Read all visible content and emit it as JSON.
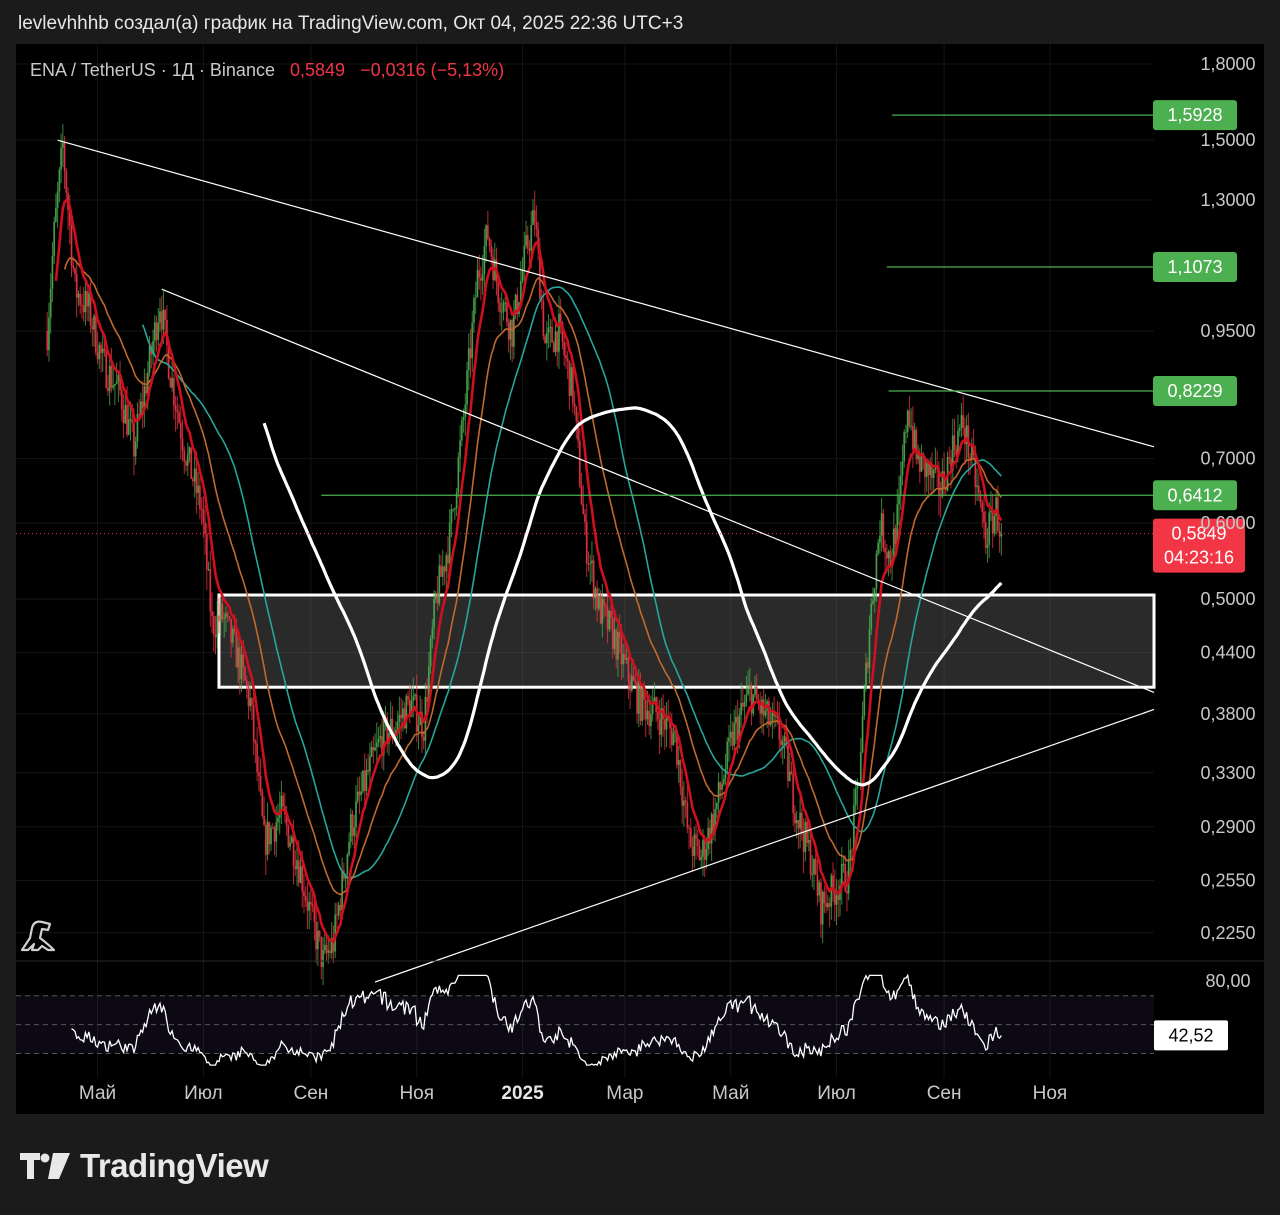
{
  "header": {
    "attribution": "levlevhhhb создал(а) график на TradingView.com, Окт 04, 2025 22:36 UTC+3"
  },
  "symbol": {
    "pair": "ENA / TetherUS · 1Д · Binance",
    "last_price": "0,5849",
    "change": "−0,0316 (−5,13%)"
  },
  "colors": {
    "up": "#4caf50",
    "down": "#f23645",
    "ema_fast": "#d0101e",
    "ema_slow": "#c0692c",
    "sma": "#26a69a",
    "trend_lines": "#ffffff",
    "target_lines": "#4caf50"
  },
  "chart_data": {
    "type": "candlestick",
    "price_axis": {
      "scale": "log",
      "ticks": [
        "1,8000",
        "1,5000",
        "1,3000",
        "0,9500",
        "0,7000",
        "0,6000",
        "0,5000",
        "0,4400",
        "0,3800",
        "0,3300",
        "0,2900",
        "0,2550",
        "0,2250"
      ],
      "tick_values": [
        1.8,
        1.5,
        1.3,
        0.95,
        0.7,
        0.6,
        0.5,
        0.44,
        0.38,
        0.33,
        0.29,
        0.255,
        0.225
      ],
      "range": [
        0.2,
        1.8
      ]
    },
    "time_axis": {
      "ticks": [
        "Май",
        "Июл",
        "Сен",
        "Ноя",
        "2025",
        "Мар",
        "Май",
        "Июл",
        "Сен",
        "Ноя"
      ],
      "range": [
        "2024-03-15",
        "2025-12-31"
      ]
    },
    "price_tags": [
      {
        "label": "1,5928",
        "value": 1.5928,
        "color": "#4caf50"
      },
      {
        "label": "1,1073",
        "value": 1.1073,
        "color": "#4caf50"
      },
      {
        "label": "0,8229",
        "value": 0.8229,
        "color": "#4caf50"
      },
      {
        "label": "0,6412",
        "value": 0.6412,
        "color": "#4caf50"
      }
    ],
    "current": {
      "label": "0,5849",
      "value": 0.5849,
      "countdown": "04:23:16",
      "color": "#f23645"
    },
    "zone": {
      "low": 0.405,
      "high": 0.505,
      "from": "2024-07-10"
    },
    "approx_closes": [
      {
        "date": "2024-04-02",
        "value": 0.95
      },
      {
        "date": "2024-04-06",
        "value": 1.2
      },
      {
        "date": "2024-04-11",
        "value": 1.48
      },
      {
        "date": "2024-04-18",
        "value": 1.05
      },
      {
        "date": "2024-04-26",
        "value": 1.0
      },
      {
        "date": "2024-05-04",
        "value": 0.88
      },
      {
        "date": "2024-05-14",
        "value": 0.82
      },
      {
        "date": "2024-05-22",
        "value": 0.72
      },
      {
        "date": "2024-05-30",
        "value": 0.86
      },
      {
        "date": "2024-06-06",
        "value": 1.02
      },
      {
        "date": "2024-06-12",
        "value": 0.86
      },
      {
        "date": "2024-06-20",
        "value": 0.72
      },
      {
        "date": "2024-06-30",
        "value": 0.62
      },
      {
        "date": "2024-07-06",
        "value": 0.47
      },
      {
        "date": "2024-07-12",
        "value": 0.48
      },
      {
        "date": "2024-07-20",
        "value": 0.44
      },
      {
        "date": "2024-07-28",
        "value": 0.39
      },
      {
        "date": "2024-08-05",
        "value": 0.28
      },
      {
        "date": "2024-08-15",
        "value": 0.3
      },
      {
        "date": "2024-08-24",
        "value": 0.27
      },
      {
        "date": "2024-09-02",
        "value": 0.23
      },
      {
        "date": "2024-09-08",
        "value": 0.21
      },
      {
        "date": "2024-09-14",
        "value": 0.22
      },
      {
        "date": "2024-09-24",
        "value": 0.29
      },
      {
        "date": "2024-10-04",
        "value": 0.33
      },
      {
        "date": "2024-10-12",
        "value": 0.36
      },
      {
        "date": "2024-10-20",
        "value": 0.37
      },
      {
        "date": "2024-10-28",
        "value": 0.39
      },
      {
        "date": "2024-11-05",
        "value": 0.37
      },
      {
        "date": "2024-11-12",
        "value": 0.5
      },
      {
        "date": "2024-11-20",
        "value": 0.58
      },
      {
        "date": "2024-11-28",
        "value": 0.77
      },
      {
        "date": "2024-12-06",
        "value": 1.08
      },
      {
        "date": "2024-12-12",
        "value": 1.2
      },
      {
        "date": "2024-12-18",
        "value": 1.05
      },
      {
        "date": "2024-12-26",
        "value": 0.95
      },
      {
        "date": "2025-01-03",
        "value": 1.15
      },
      {
        "date": "2025-01-08",
        "value": 1.25
      },
      {
        "date": "2025-01-14",
        "value": 0.92
      },
      {
        "date": "2025-01-22",
        "value": 0.95
      },
      {
        "date": "2025-01-30",
        "value": 0.82
      },
      {
        "date": "2025-02-06",
        "value": 0.58
      },
      {
        "date": "2025-02-14",
        "value": 0.49
      },
      {
        "date": "2025-02-22",
        "value": 0.46
      },
      {
        "date": "2025-03-02",
        "value": 0.42
      },
      {
        "date": "2025-03-10",
        "value": 0.39
      },
      {
        "date": "2025-03-20",
        "value": 0.38
      },
      {
        "date": "2025-03-30",
        "value": 0.36
      },
      {
        "date": "2025-04-07",
        "value": 0.28
      },
      {
        "date": "2025-04-14",
        "value": 0.27
      },
      {
        "date": "2025-04-22",
        "value": 0.3
      },
      {
        "date": "2025-05-02",
        "value": 0.36
      },
      {
        "date": "2025-05-12",
        "value": 0.4
      },
      {
        "date": "2025-05-20",
        "value": 0.38
      },
      {
        "date": "2025-05-30",
        "value": 0.36
      },
      {
        "date": "2025-06-08",
        "value": 0.3
      },
      {
        "date": "2025-06-16",
        "value": 0.27
      },
      {
        "date": "2025-06-22",
        "value": 0.24
      },
      {
        "date": "2025-06-30",
        "value": 0.25
      },
      {
        "date": "2025-07-08",
        "value": 0.26
      },
      {
        "date": "2025-07-14",
        "value": 0.33
      },
      {
        "date": "2025-07-20",
        "value": 0.47
      },
      {
        "date": "2025-07-26",
        "value": 0.6
      },
      {
        "date": "2025-08-01",
        "value": 0.55
      },
      {
        "date": "2025-08-06",
        "value": 0.62
      },
      {
        "date": "2025-08-11",
        "value": 0.8
      },
      {
        "date": "2025-08-16",
        "value": 0.7
      },
      {
        "date": "2025-08-22",
        "value": 0.68
      },
      {
        "date": "2025-08-30",
        "value": 0.65
      },
      {
        "date": "2025-09-06",
        "value": 0.72
      },
      {
        "date": "2025-09-12",
        "value": 0.76
      },
      {
        "date": "2025-09-18",
        "value": 0.68
      },
      {
        "date": "2025-09-25",
        "value": 0.58
      },
      {
        "date": "2025-10-01",
        "value": 0.62
      },
      {
        "date": "2025-10-04",
        "value": 0.5849
      }
    ],
    "trend_lines": [
      {
        "from": {
          "date": "2024-04-08",
          "value": 1.5
        },
        "to": {
          "date": "2025-12-31",
          "value": 0.72
        }
      },
      {
        "from": {
          "date": "2024-06-07",
          "value": 1.05
        },
        "to": {
          "date": "2025-12-31",
          "value": 0.4
        }
      },
      {
        "from": {
          "date": "2024-10-08",
          "value": 0.2
        },
        "to": {
          "date": "2025-12-31",
          "value": 0.384
        }
      }
    ],
    "rsi": {
      "label": "42,52",
      "value": 42.52,
      "ticks": [
        "80,00"
      ],
      "upper": 70,
      "lower": 30,
      "range": [
        20,
        85
      ]
    }
  },
  "brand": {
    "name": "TradingView"
  }
}
